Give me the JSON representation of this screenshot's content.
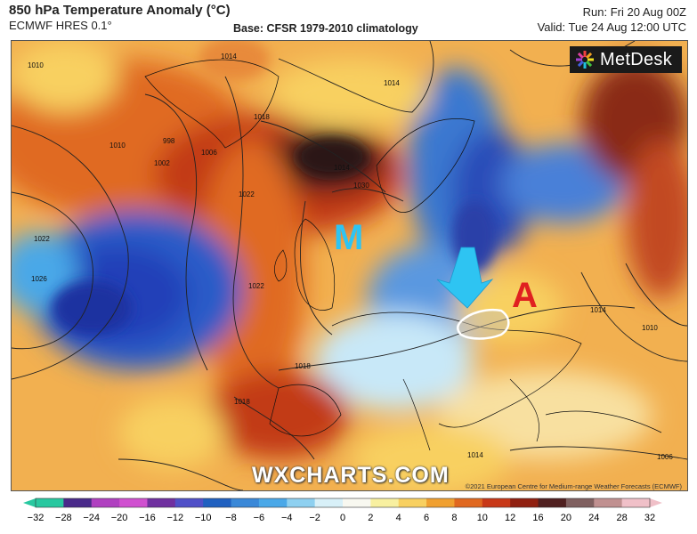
{
  "header": {
    "title": "850 hPa Temperature Anomaly (°C)",
    "model": "ECMWF HRES 0.1°",
    "base": "Base: CFSR 1979-2010 climatology",
    "run": "Run: Fri 20 Aug 00Z",
    "valid": "Valid: Tue 24 Aug 12:00 UTC"
  },
  "map": {
    "logo": "MetDesk",
    "watermark": "WXCHARTS.COM",
    "copyright": "©2021 European Centre for Medium-range Weather Forecasts (ECMWF)",
    "marker_m": "M",
    "marker_a": "A",
    "isobar_labels": [
      "1010",
      "1010",
      "1002",
      "1006",
      "1014",
      "1018",
      "1022",
      "1026",
      "1030",
      "1022",
      "1018",
      "1014",
      "1014",
      "1010",
      "1006",
      "1014",
      "1022",
      "1018",
      "1014",
      "998"
    ],
    "arrow_color": "#2ec4f2",
    "highlight_outline_color": "#ffffff"
  },
  "colorbar": {
    "ticks": [
      "−32",
      "−28",
      "−24",
      "−20",
      "−16",
      "−12",
      "−10",
      "−8",
      "−6",
      "−4",
      "−2",
      "0",
      "2",
      "4",
      "6",
      "8",
      "10",
      "12",
      "16",
      "20",
      "24",
      "28",
      "32"
    ],
    "stops": [
      "#28c8a0",
      "#4a2a8a",
      "#b040c0",
      "#d050d0",
      "#7030a0",
      "#5050c8",
      "#2060c0",
      "#3a88d8",
      "#4aa8e8",
      "#8ed0f0",
      "#d8f0f8",
      "#f8f8f0",
      "#f8f0a0",
      "#f8d060",
      "#f0a030",
      "#e06820",
      "#c83818",
      "#902010",
      "#502020",
      "#806060",
      "#c09090",
      "#f0c0c8"
    ]
  }
}
